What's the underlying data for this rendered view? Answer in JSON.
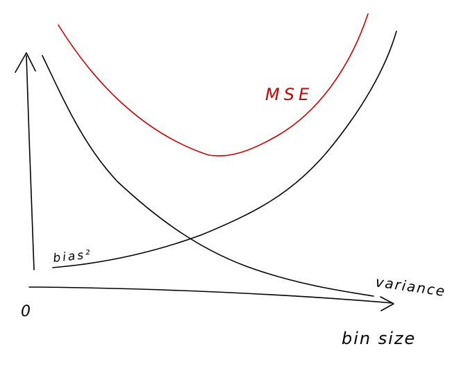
{
  "diagram": {
    "colors": {
      "ink": "#000000",
      "mse": "#cc0000",
      "background": "#ffffff"
    },
    "labels": {
      "origin": "0",
      "mse": "MSE",
      "bias": "bias²",
      "variance": "variance",
      "x_axis": "bin size"
    },
    "curves": [
      {
        "id": "mse",
        "label_key": "mse",
        "color_key": "mse",
        "shape": "u-shaped"
      },
      {
        "id": "bias-squared",
        "label_key": "bias",
        "color_key": "ink",
        "shape": "increasing"
      },
      {
        "id": "variance",
        "label_key": "variance",
        "color_key": "ink",
        "shape": "decreasing"
      }
    ]
  }
}
